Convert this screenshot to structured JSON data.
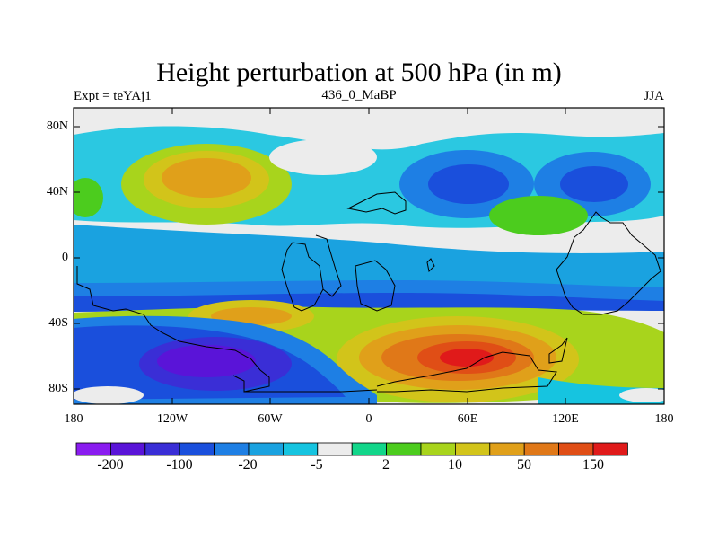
{
  "title": "Height perturbation at 500 hPa (in m)",
  "subtitle_left": "Expt = teYAj1",
  "subtitle_center": "436_0_MaBP",
  "subtitle_right": "JJA",
  "map": {
    "y_ticks": [
      "80N",
      "40N",
      "0",
      "40S",
      "80S"
    ],
    "x_ticks": [
      "180",
      "120W",
      "60W",
      "0",
      "60E",
      "120E",
      "180"
    ]
  },
  "colorbar": {
    "colors": [
      "#8a1cf0",
      "#5a14d8",
      "#3a2ed6",
      "#1a4fdc",
      "#1e7fe4",
      "#1aa2e0",
      "#16c4e0",
      "#ececec",
      "#12d68a",
      "#4ccc1e",
      "#a8d41c",
      "#d2c41a",
      "#e0a01a",
      "#e07818",
      "#e04e16",
      "#e01a1a"
    ],
    "labels": [
      "-200",
      "-100",
      "-20",
      "-5",
      "2",
      "10",
      "50",
      "150"
    ]
  }
}
